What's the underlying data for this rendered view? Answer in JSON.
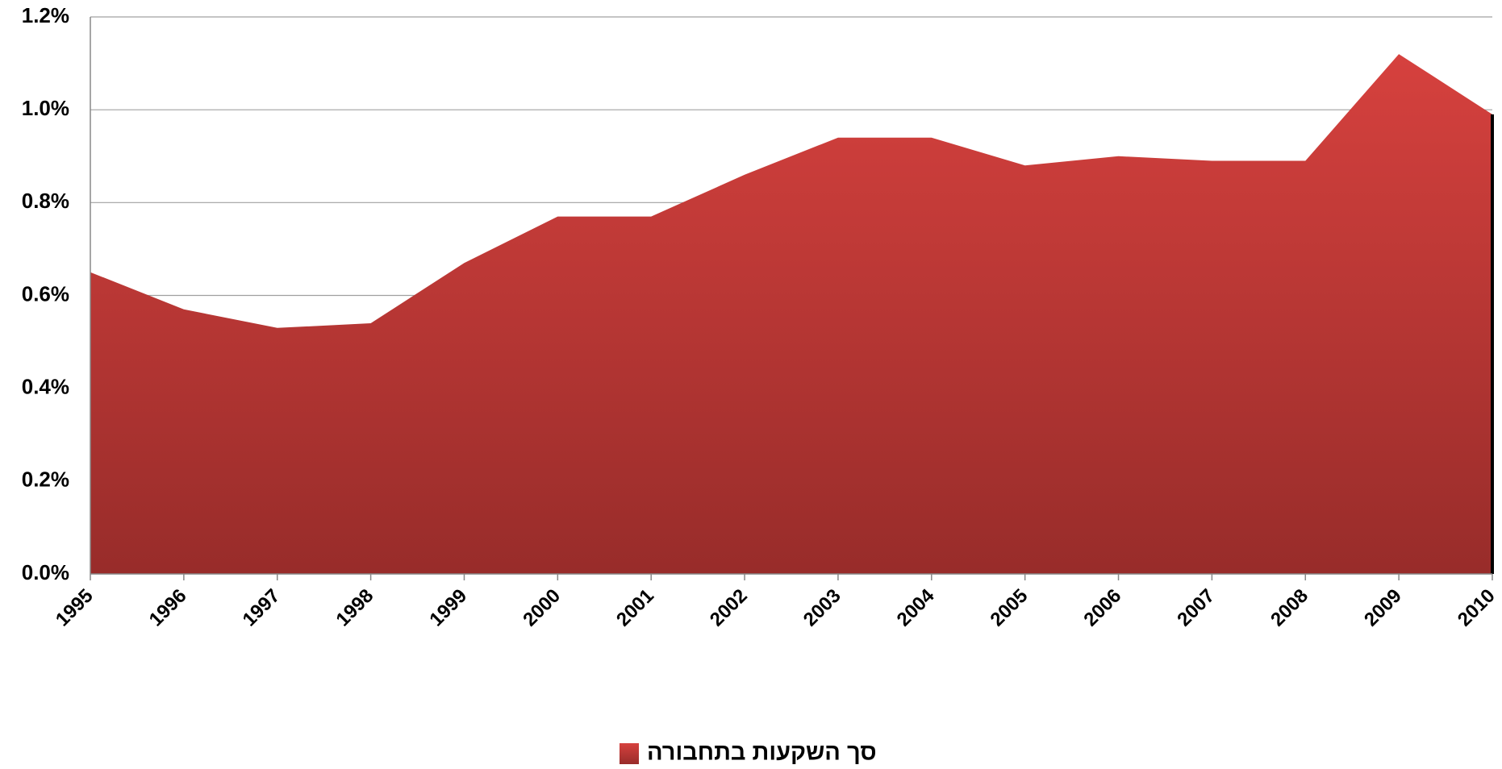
{
  "chart_data": {
    "type": "area",
    "categories": [
      "1995",
      "1996",
      "1997",
      "1998",
      "1999",
      "2000",
      "2001",
      "2002",
      "2003",
      "2004",
      "2005",
      "2006",
      "2007",
      "2008",
      "2009",
      "2010"
    ],
    "series": [
      {
        "name": "סך השקעות בתחבורה",
        "color": "#c63b38",
        "values": [
          0.65,
          0.57,
          0.53,
          0.54,
          0.67,
          0.77,
          0.77,
          0.86,
          0.94,
          0.94,
          0.88,
          0.9,
          0.89,
          0.89,
          1.12,
          0.99
        ]
      }
    ],
    "ylim": [
      0,
      1.2
    ],
    "yticks": [
      {
        "value": 0,
        "label": "0.0%"
      },
      {
        "value": 0.2,
        "label": "0.2%"
      },
      {
        "value": 0.4,
        "label": "0.4%"
      },
      {
        "value": 0.6,
        "label": "0.6%"
      },
      {
        "value": 0.8,
        "label": "0.8%"
      },
      {
        "value": 1.0,
        "label": "1.0%"
      },
      {
        "value": 1.2,
        "label": "1.2%"
      }
    ],
    "grid": true,
    "legend": "bottom"
  }
}
